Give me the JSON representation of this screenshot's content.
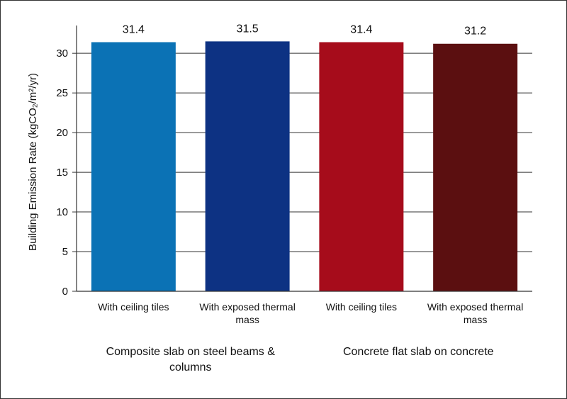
{
  "chart_data": {
    "type": "bar",
    "y_label": "Building Emission Rate (kgCO₂/m²/yr)",
    "categories": [
      "With ceiling tiles",
      "With exposed thermal mass",
      "With ceiling tiles",
      "With exposed thermal mass"
    ],
    "groups": [
      "Composite slab on steel beams & columns",
      "Concrete flat slab on concrete"
    ],
    "values": [
      31.4,
      31.5,
      31.4,
      31.2
    ],
    "colors": [
      "#0b72b5",
      "#0d3283",
      "#a60c1b",
      "#5b0f10"
    ],
    "ylim": [
      0,
      33.5
    ],
    "yticks": [
      0,
      5,
      10,
      15,
      20,
      25,
      30
    ],
    "grid": true
  }
}
